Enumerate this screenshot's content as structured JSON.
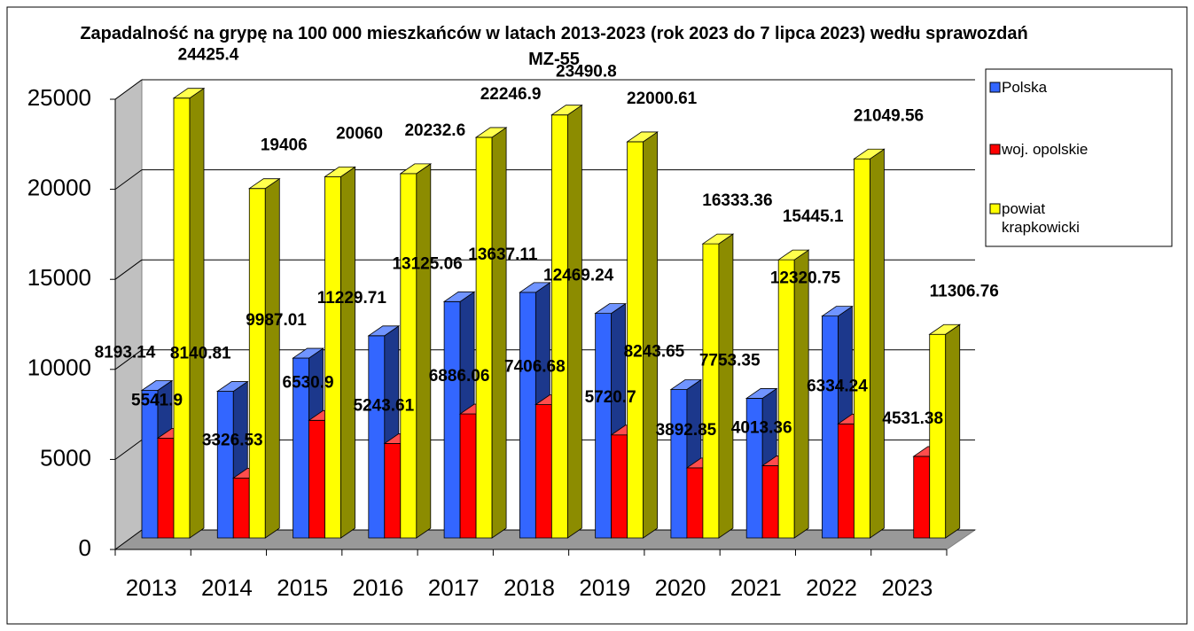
{
  "chart_data": {
    "type": "bar3d",
    "title": "Zapadalność na grypę na 100 000 mieszkańców w latach 2013-2023 (rok 2023 do 7 lipca 2023) wedłu sprawozdań MZ-55",
    "categories": [
      "2013",
      "2014",
      "2015",
      "2016",
      "2017",
      "2018",
      "2019",
      "2020",
      "2021",
      "2022",
      "2023"
    ],
    "series": [
      {
        "name": "Polska",
        "color": "#3366ff",
        "values": [
          8193.14,
          8140.81,
          9987.01,
          11229.71,
          13125.06,
          13637.11,
          12469.24,
          8243.65,
          7753.35,
          12320.75,
          null
        ]
      },
      {
        "name": "woj. opolskie",
        "color": "#ff0000",
        "values": [
          5541.9,
          3326.53,
          6530.9,
          5243.61,
          6886.06,
          7406.68,
          5720.7,
          3892.85,
          4013.36,
          6334.24,
          4531.38
        ]
      },
      {
        "name": "powiat krapkowicki",
        "color": "#ffff00",
        "values": [
          24425.4,
          19406,
          20060,
          20232.6,
          22246.9,
          23490.8,
          22000.61,
          16333.36,
          15445.1,
          21049.56,
          11306.76
        ]
      }
    ],
    "ylim": [
      0,
      25000
    ],
    "yticks": [
      0,
      5000,
      10000,
      15000,
      20000,
      25000
    ],
    "grid": true,
    "legend": "right"
  }
}
